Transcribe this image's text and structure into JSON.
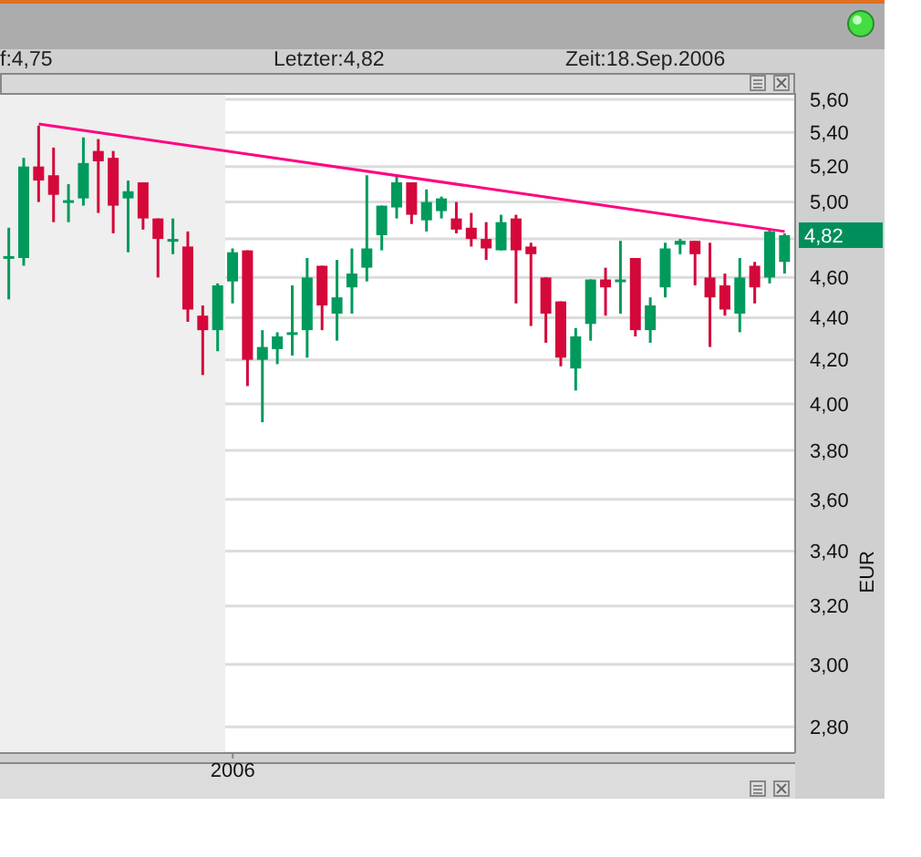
{
  "chart_data": {
    "type": "candlestick",
    "ylabel": "EUR",
    "annotations": [
      "f:4,75",
      "Letzter:4,82",
      "Zeit:18.Sep.2006",
      "4,82"
    ],
    "categories": [
      null,
      null,
      null,
      null,
      null,
      null,
      null,
      null,
      null,
      null,
      null,
      null,
      null,
      null,
      null,
      "2006",
      null,
      null,
      null,
      null,
      null,
      null,
      null,
      null,
      null,
      null,
      null,
      null,
      null,
      null,
      null,
      null,
      null,
      null,
      null,
      null,
      null,
      null,
      null,
      null,
      null,
      null,
      null,
      null,
      null,
      null,
      null,
      null,
      null,
      null,
      null,
      null,
      null
    ],
    "log": true,
    "ylim": [
      2.72,
      5.64
    ],
    "yticks": [
      {
        "value": 2.8,
        "label": "2,80"
      },
      {
        "value": 3.0,
        "label": "3,00"
      },
      {
        "value": 3.2,
        "label": "3,20"
      },
      {
        "value": 3.4,
        "label": "3,40"
      },
      {
        "value": 3.6,
        "label": "3,60"
      },
      {
        "value": 3.8,
        "label": "3,80"
      },
      {
        "value": 4.0,
        "label": "4,00"
      },
      {
        "value": 4.2,
        "label": "4,20"
      },
      {
        "value": 4.4,
        "label": "4,40"
      },
      {
        "value": 4.6,
        "label": "4,60"
      },
      {
        "value": 4.8,
        "label": null
      },
      {
        "value": 5.0,
        "label": "5,00"
      },
      {
        "value": 5.2,
        "label": "5,20"
      },
      {
        "value": 5.4,
        "label": "5,40"
      },
      {
        "value": 5.6,
        "label": "5,60"
      }
    ],
    "grid": "y",
    "series": [
      {
        "ohlc": [
          [
            4.7,
            4.86,
            4.49,
            4.71
          ],
          [
            4.7,
            5.25,
            4.66,
            5.2
          ],
          [
            5.2,
            5.44,
            5.0,
            5.12
          ],
          [
            5.15,
            5.31,
            4.89,
            5.04
          ],
          [
            5.0,
            5.1,
            4.89,
            5.01
          ],
          [
            5.02,
            5.37,
            4.98,
            5.22
          ],
          [
            5.29,
            5.36,
            4.94,
            5.23
          ],
          [
            5.25,
            5.29,
            4.83,
            4.98
          ],
          [
            5.02,
            5.12,
            4.73,
            5.06
          ],
          [
            5.11,
            5.11,
            4.85,
            4.91
          ],
          [
            4.91,
            4.91,
            4.6,
            4.8
          ],
          [
            4.79,
            4.91,
            4.72,
            4.8
          ],
          [
            4.76,
            4.84,
            4.38,
            4.44
          ],
          [
            4.41,
            4.46,
            4.13,
            4.34
          ],
          [
            4.34,
            4.57,
            4.24,
            4.56
          ],
          [
            4.58,
            4.75,
            4.47,
            4.73
          ],
          [
            4.74,
            4.74,
            4.08,
            4.2
          ],
          [
            4.2,
            4.34,
            3.92,
            4.26
          ],
          [
            4.25,
            4.33,
            4.18,
            4.31
          ],
          [
            4.32,
            4.56,
            4.22,
            4.33
          ],
          [
            4.34,
            4.7,
            4.21,
            4.6
          ],
          [
            4.66,
            4.66,
            4.34,
            4.46
          ],
          [
            4.42,
            4.69,
            4.29,
            4.5
          ],
          [
            4.55,
            4.75,
            4.42,
            4.62
          ],
          [
            4.65,
            5.15,
            4.58,
            4.75
          ],
          [
            4.82,
            4.98,
            4.74,
            4.98
          ],
          [
            4.97,
            5.15,
            4.91,
            5.11
          ],
          [
            5.11,
            5.11,
            4.88,
            4.93
          ],
          [
            4.9,
            5.07,
            4.84,
            5.0
          ],
          [
            4.95,
            5.03,
            4.91,
            5.02
          ],
          [
            4.91,
            5.0,
            4.83,
            4.85
          ],
          [
            4.86,
            4.94,
            4.76,
            4.8
          ],
          [
            4.8,
            4.89,
            4.69,
            4.75
          ],
          [
            4.74,
            4.93,
            4.74,
            4.89
          ],
          [
            4.91,
            4.93,
            4.47,
            4.74
          ],
          [
            4.76,
            4.78,
            4.36,
            4.72
          ],
          [
            4.6,
            4.6,
            4.28,
            4.42
          ],
          [
            4.48,
            4.48,
            4.17,
            4.21
          ],
          [
            4.16,
            4.35,
            4.06,
            4.31
          ],
          [
            4.37,
            4.59,
            4.29,
            4.59
          ],
          [
            4.59,
            4.65,
            4.41,
            4.55
          ],
          [
            4.59,
            4.79,
            4.42,
            4.59
          ],
          [
            4.7,
            4.7,
            4.31,
            4.34
          ],
          [
            4.34,
            4.5,
            4.28,
            4.46
          ],
          [
            4.55,
            4.78,
            4.5,
            4.75
          ],
          [
            4.77,
            4.8,
            4.72,
            4.79
          ],
          [
            4.79,
            4.79,
            4.56,
            4.72
          ],
          [
            4.6,
            4.78,
            4.26,
            4.5
          ],
          [
            4.56,
            4.62,
            4.41,
            4.44
          ],
          [
            4.42,
            4.7,
            4.33,
            4.6
          ],
          [
            4.66,
            4.68,
            4.47,
            4.55
          ],
          [
            4.6,
            4.85,
            4.57,
            4.84
          ],
          [
            4.68,
            4.83,
            4.62,
            4.82
          ]
        ],
        "colors": [
          "#009a5c",
          "#009a5c",
          "#d4083a",
          "#d4083a",
          "#009a5c",
          "#009a5c",
          "#d4083a",
          "#d4083a",
          "#009a5c",
          "#d4083a",
          "#d4083a",
          "#009a5c",
          "#d4083a",
          "#d4083a",
          "#009a5c",
          "#009a5c",
          "#d4083a",
          "#009a5c",
          "#009a5c",
          "#009a5c",
          "#009a5c",
          "#d4083a",
          "#009a5c",
          "#009a5c",
          "#009a5c",
          "#009a5c",
          "#009a5c",
          "#d4083a",
          "#009a5c",
          "#009a5c",
          "#d4083a",
          "#d4083a",
          "#d4083a",
          "#009a5c",
          "#d4083a",
          "#d4083a",
          "#d4083a",
          "#d4083a",
          "#009a5c",
          "#009a5c",
          "#d4083a",
          "#009a5c",
          "#d4083a",
          "#009a5c",
          "#009a5c",
          "#009a5c",
          "#d4083a",
          "#d4083a",
          "#d4083a",
          "#009a5c",
          "#d4083a",
          "#009a5c",
          "#009a5c"
        ]
      },
      {
        "type": "line",
        "color": "#ff0080",
        "values": [
          null,
          null,
          5.45,
          null,
          null,
          null,
          null,
          null,
          null,
          null,
          null,
          null,
          null,
          null,
          null,
          null,
          null,
          null,
          null,
          null,
          null,
          null,
          null,
          null,
          null,
          null,
          null,
          null,
          null,
          null,
          null,
          null,
          null,
          null,
          null,
          null,
          null,
          null,
          null,
          null,
          null,
          null,
          null,
          null,
          null,
          null,
          null,
          null,
          null,
          null,
          null,
          null,
          4.84
        ]
      }
    ]
  }
}
